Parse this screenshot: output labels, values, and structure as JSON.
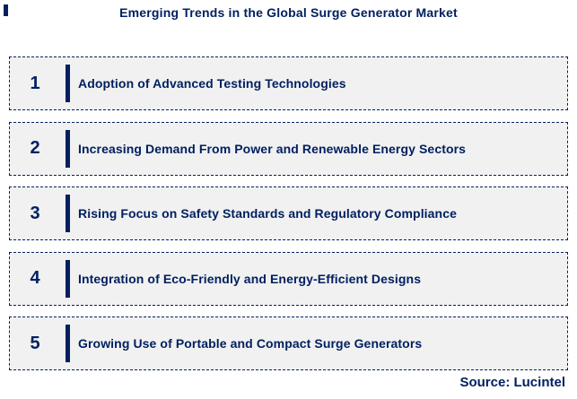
{
  "title": "Emerging Trends in the Global Surge Generator Market",
  "source": "Source: Lucintel",
  "colors": {
    "navy": "#002060",
    "box_bg": "#f1f1f1",
    "page_bg": "#ffffff"
  },
  "trends": [
    {
      "number": "1",
      "label": "Adoption of Advanced Testing Technologies"
    },
    {
      "number": "2",
      "label": "Increasing Demand From Power and Renewable Energy Sectors"
    },
    {
      "number": "3",
      "label": "Rising Focus on Safety Standards and Regulatory Compliance"
    },
    {
      "number": "4",
      "label": "Integration of Eco-Friendly and Energy-Efficient Designs"
    },
    {
      "number": "5",
      "label": "Growing Use of Portable and Compact Surge Generators"
    }
  ]
}
